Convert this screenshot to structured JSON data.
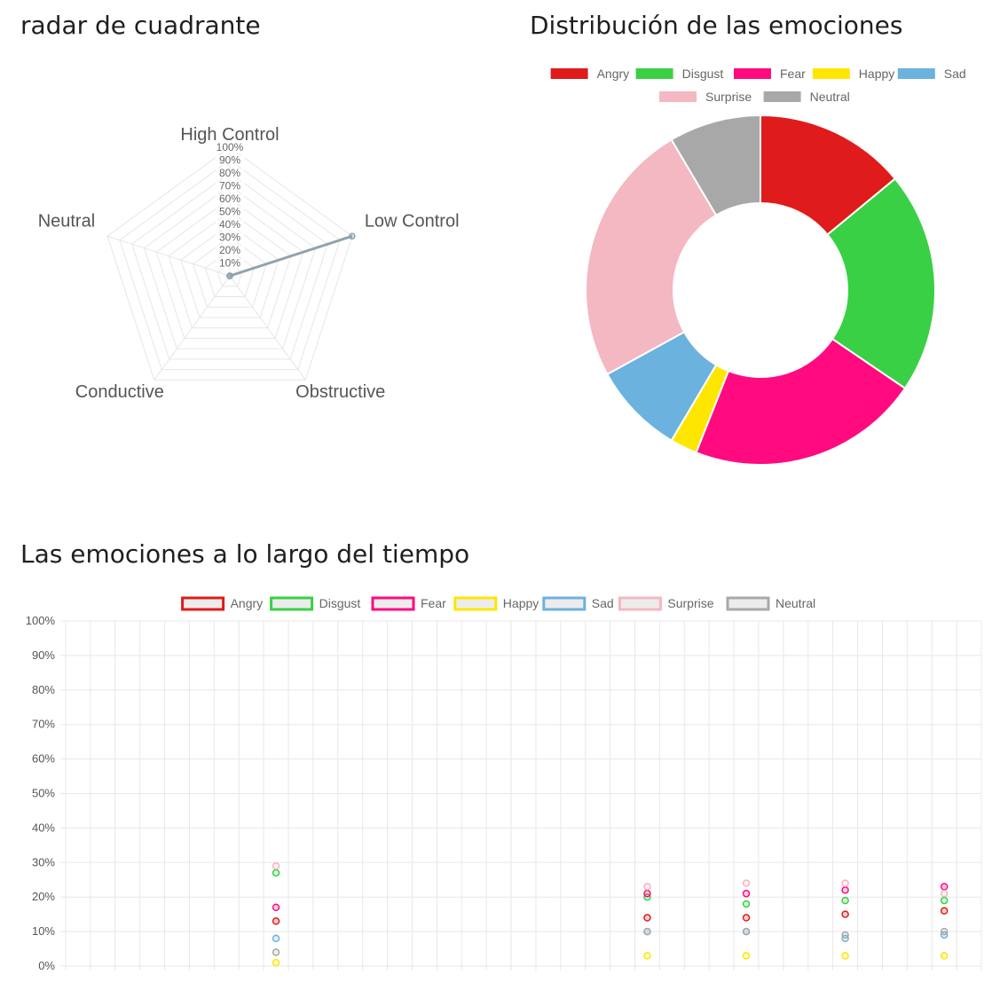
{
  "sections": {
    "radar_title": "radar de cuadrante",
    "donut_title": "Distribución de las emociones",
    "timeline_title": "Las emociones a lo largo del tiempo"
  },
  "colors": {
    "Angry": "#e01b1b",
    "Disgust": "#3ad046",
    "Fear": "#ff0a7f",
    "Happy": "#ffe600",
    "Sad": "#6cb2de",
    "Surprise": "#f3b8c2",
    "Neutral": "#a8a8a8"
  },
  "chart_data": [
    {
      "type": "radar",
      "axes": [
        "High Control",
        "Low Control",
        "Obstructive",
        "Conductive",
        "Neutral"
      ],
      "tick_labels": [
        "10%",
        "20%",
        "30%",
        "40%",
        "50%",
        "60%",
        "70%",
        "80%",
        "90%",
        "100%"
      ],
      "range": [
        0,
        100
      ],
      "series": [
        {
          "values": [
            0,
            100,
            0,
            0,
            0
          ],
          "color": "#8fa3ae"
        }
      ],
      "grid": true
    },
    {
      "type": "pie",
      "variant": "doughnut",
      "legend_position": "top",
      "labels": [
        "Angry",
        "Disgust",
        "Fear",
        "Happy",
        "Sad",
        "Surprise",
        "Neutral"
      ],
      "values": [
        14,
        20.5,
        21.5,
        2.5,
        8.5,
        24.5,
        8.5
      ]
    },
    {
      "type": "scatter",
      "legend_position": "top",
      "y_tick_labels": [
        "0%",
        "10%",
        "20%",
        "30%",
        "40%",
        "50%",
        "60%",
        "70%",
        "80%",
        "90%",
        "100%"
      ],
      "ylim": [
        0,
        100
      ],
      "x_slot_count": 37,
      "grid": true,
      "x": [
        8,
        23,
        27,
        31,
        35
      ],
      "series": [
        {
          "name": "Angry",
          "values": [
            13,
            14,
            14,
            15,
            16
          ]
        },
        {
          "name": "Disgust",
          "values": [
            27,
            20,
            18,
            19,
            19
          ]
        },
        {
          "name": "Fear",
          "values": [
            17,
            21,
            21,
            22,
            23
          ]
        },
        {
          "name": "Happy",
          "values": [
            1,
            3,
            3,
            3,
            3
          ]
        },
        {
          "name": "Sad",
          "values": [
            8,
            10,
            10,
            8,
            9
          ]
        },
        {
          "name": "Surprise",
          "values": [
            29,
            23,
            24,
            24,
            21
          ]
        },
        {
          "name": "Neutral",
          "values": [
            4,
            10,
            10,
            9,
            10
          ]
        }
      ]
    }
  ]
}
